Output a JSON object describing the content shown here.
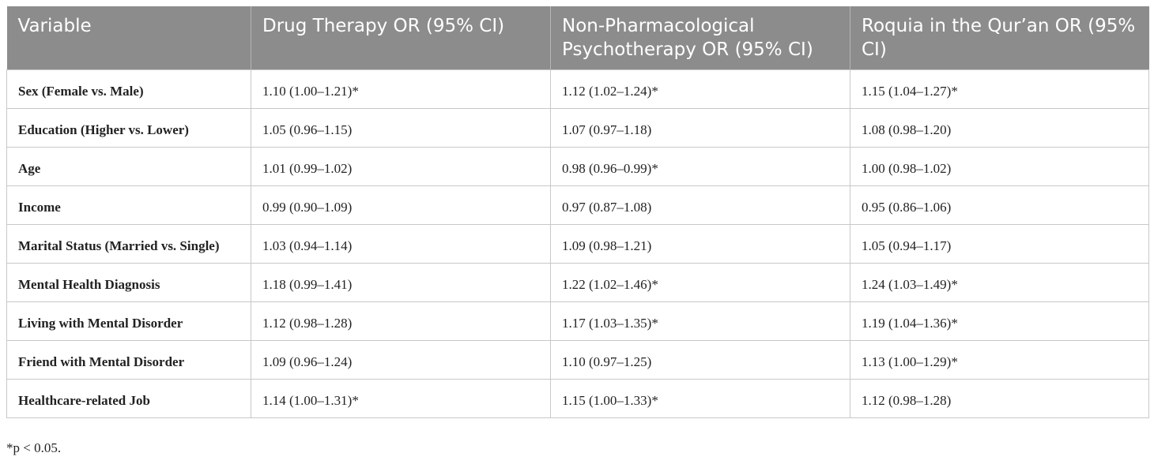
{
  "table": {
    "header": [
      "Variable",
      "Drug Therapy OR (95% CI)",
      "Non-Pharmacological Psychotherapy OR (95% CI)",
      "Roquia in the Qur’an OR (95% CI)"
    ],
    "rows": [
      [
        "Sex (Female vs. Male)",
        "1.10 (1.00–1.21)*",
        "1.12 (1.02–1.24)*",
        "1.15 (1.04–1.27)*"
      ],
      [
        "Education (Higher vs. Lower)",
        "1.05 (0.96–1.15)",
        "1.07 (0.97–1.18)",
        "1.08 (0.98–1.20)"
      ],
      [
        "Age",
        "1.01 (0.99–1.02)",
        "0.98 (0.96–0.99)*",
        "1.00 (0.98–1.02)"
      ],
      [
        "Income",
        "0.99 (0.90–1.09)",
        "0.97 (0.87–1.08)",
        "0.95 (0.86–1.06)"
      ],
      [
        "Marital Status (Married vs. Single)",
        "1.03 (0.94–1.14)",
        "1.09 (0.98–1.21)",
        "1.05 (0.94–1.17)"
      ],
      [
        "Mental Health Diagnosis",
        "1.18 (0.99–1.41)",
        "1.22 (1.02–1.46)*",
        "1.24 (1.03–1.49)*"
      ],
      [
        "Living with Mental Disorder",
        "1.12 (0.98–1.28)",
        "1.17 (1.03–1.35)*",
        "1.19 (1.04–1.36)*"
      ],
      [
        "Friend with Mental Disorder",
        "1.09 (0.96–1.24)",
        "1.10 (0.97–1.25)",
        "1.13 (1.00–1.29)*"
      ],
      [
        "Healthcare-related Job",
        "1.14 (1.00–1.31)*",
        "1.15 (1.00–1.33)*",
        "1.12 (0.98–1.28)"
      ]
    ]
  },
  "footnote": "*p < 0.05."
}
